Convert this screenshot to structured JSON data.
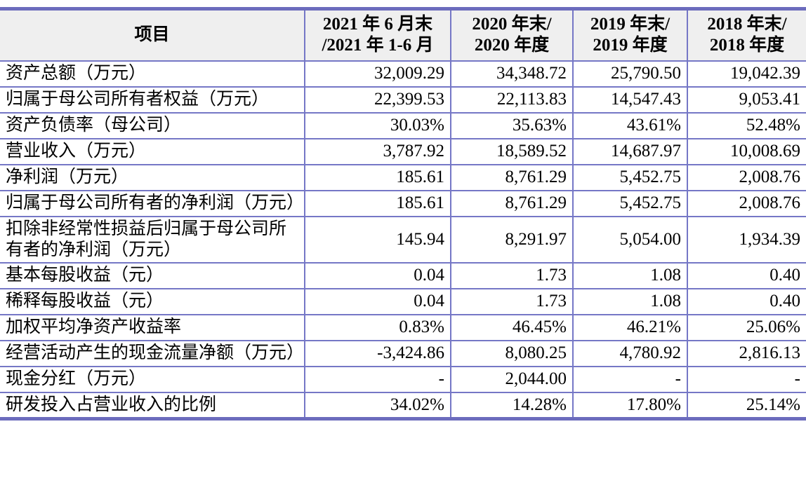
{
  "colors": {
    "border": "#7577c6",
    "thick_border": "#6c6cbd",
    "header_background": "#efefef",
    "text": "#000000"
  },
  "table": {
    "header": {
      "item_label": "项目",
      "columns": [
        {
          "line1": "2021 年 6 月末",
          "line2": "/2021 年 1-6 月"
        },
        {
          "line1": "2020 年末/",
          "line2": "2020 年度"
        },
        {
          "line1": "2019 年末/",
          "line2": "2019 年度"
        },
        {
          "line1": "2018 年末/",
          "line2": "2018 年度"
        }
      ]
    },
    "rows": [
      {
        "label": "资产总额（万元）",
        "values": [
          "32,009.29",
          "34,348.72",
          "25,790.50",
          "19,042.39"
        ]
      },
      {
        "label": "归属于母公司所有者权益（万元）",
        "values": [
          "22,399.53",
          "22,113.83",
          "14,547.43",
          "9,053.41"
        ]
      },
      {
        "label": "资产负债率（母公司）",
        "values": [
          "30.03%",
          "35.63%",
          "43.61%",
          "52.48%"
        ]
      },
      {
        "label": "营业收入（万元）",
        "values": [
          "3,787.92",
          "18,589.52",
          "14,687.97",
          "10,008.69"
        ]
      },
      {
        "label": "净利润（万元）",
        "values": [
          "185.61",
          "8,761.29",
          "5,452.75",
          "2,008.76"
        ]
      },
      {
        "label": "归属于母公司所有者的净利润（万元）",
        "values": [
          "185.61",
          "8,761.29",
          "5,452.75",
          "2,008.76"
        ]
      },
      {
        "label": "扣除非经常性损益后归属于母公司所有者的净利润（万元）",
        "values": [
          "145.94",
          "8,291.97",
          "5,054.00",
          "1,934.39"
        ]
      },
      {
        "label": "基本每股收益（元）",
        "values": [
          "0.04",
          "1.73",
          "1.08",
          "0.40"
        ]
      },
      {
        "label": "稀释每股收益（元）",
        "values": [
          "0.04",
          "1.73",
          "1.08",
          "0.40"
        ]
      },
      {
        "label": "加权平均净资产收益率",
        "values": [
          "0.83%",
          "46.45%",
          "46.21%",
          "25.06%"
        ]
      },
      {
        "label": "经营活动产生的现金流量净额（万元）",
        "values": [
          "-3,424.86",
          "8,080.25",
          "4,780.92",
          "2,816.13"
        ]
      },
      {
        "label": "现金分红（万元）",
        "values": [
          "-",
          "2,044.00",
          "-",
          "-"
        ]
      },
      {
        "label": "研发投入占营业收入的比例",
        "values": [
          "34.02%",
          "14.28%",
          "17.80%",
          "25.14%"
        ]
      }
    ]
  }
}
